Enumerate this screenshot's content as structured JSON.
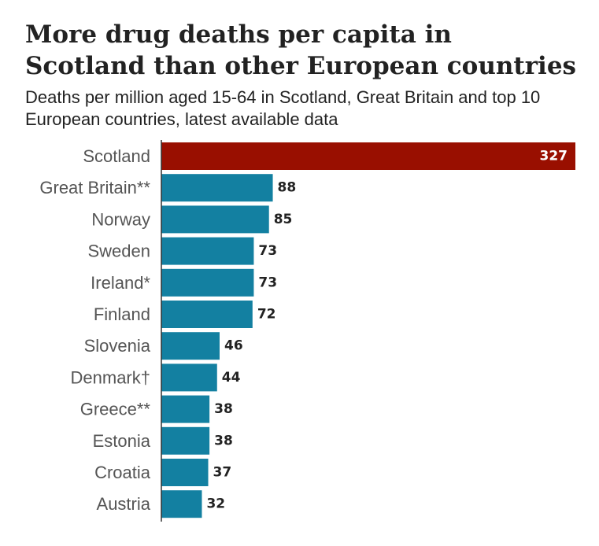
{
  "chart_data": {
    "type": "bar",
    "orientation": "horizontal",
    "title": "More drug deaths per capita in Scotland than other European countries",
    "subtitle": "Deaths per million aged 15-64 in Scotland, Great Britain and top 10 European countries, latest available data",
    "categories": [
      "Scotland",
      "Great Britain**",
      "Norway",
      "Sweden",
      "Ireland*",
      "Finland",
      "Slovenia",
      "Denmark†",
      "Greece**",
      "Estonia",
      "Croatia",
      "Austria"
    ],
    "values": [
      327,
      88,
      85,
      73,
      73,
      72,
      46,
      44,
      38,
      38,
      37,
      32
    ],
    "colors": [
      "#990f00",
      "#1380a1",
      "#1380a1",
      "#1380a1",
      "#1380a1",
      "#1380a1",
      "#1380a1",
      "#1380a1",
      "#1380a1",
      "#1380a1",
      "#1380a1",
      "#1380a1"
    ],
    "xlim": [
      0,
      327
    ],
    "grid": false,
    "legend": "none"
  }
}
